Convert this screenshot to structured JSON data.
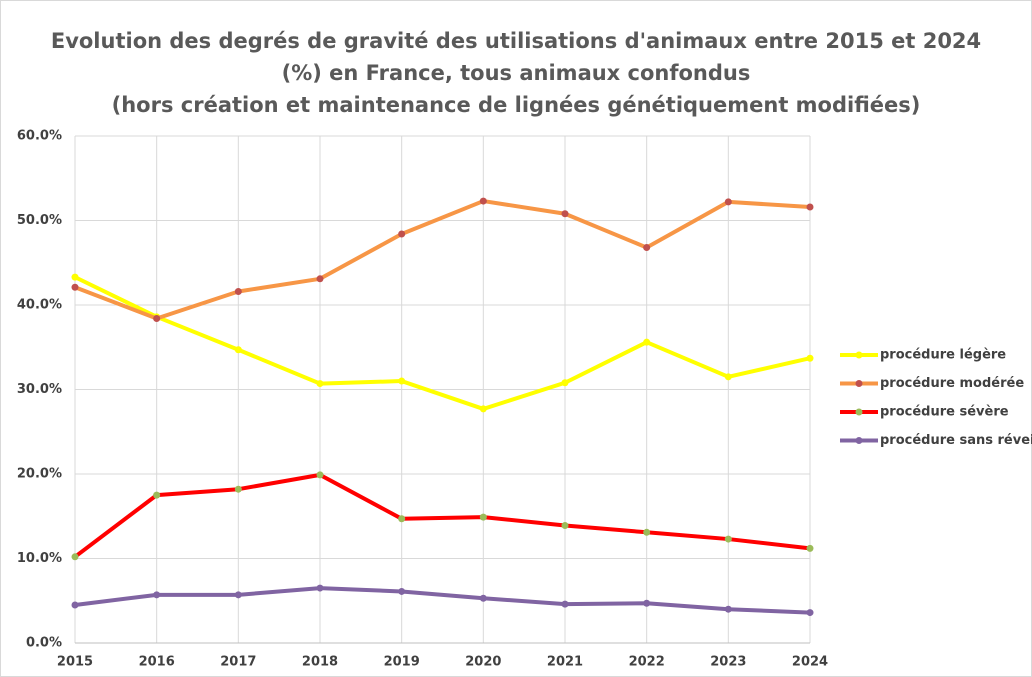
{
  "chart_data": {
    "type": "line",
    "title": [
      "Evolution des degrés de gravité des utilisations d'animaux entre 2015 et 2024",
      "(%) en France, tous animaux confondus",
      "(hors création et maintenance de lignées génétiquement modifiées)"
    ],
    "categories": [
      "2015",
      "2016",
      "2017",
      "2018",
      "2019",
      "2020",
      "2021",
      "2022",
      "2023",
      "2024"
    ],
    "series": [
      {
        "name": "procédure légère",
        "color": "#ffff00",
        "marker_color": "#ffff00",
        "values": [
          43.3,
          38.6,
          34.7,
          30.7,
          31.0,
          27.7,
          30.8,
          35.6,
          31.5,
          33.7
        ]
      },
      {
        "name": "procédure modérée",
        "color": "#f79646",
        "marker_color": "#c0504d",
        "values": [
          42.1,
          38.4,
          41.6,
          43.1,
          48.4,
          52.3,
          50.8,
          46.8,
          52.2,
          51.6
        ]
      },
      {
        "name": "procédure sévère",
        "color": "#ff0000",
        "marker_color": "#9bbb59",
        "values": [
          10.2,
          17.5,
          18.2,
          19.9,
          14.7,
          14.9,
          13.9,
          13.1,
          12.3,
          11.2
        ]
      },
      {
        "name": "procédure sans réveil",
        "color": "#8064a2",
        "marker_color": "#8064a2",
        "values": [
          4.5,
          5.7,
          5.7,
          6.5,
          6.1,
          5.3,
          4.6,
          4.7,
          4.0,
          3.6
        ]
      }
    ],
    "ylim": [
      0,
      60
    ],
    "yticks": [
      {
        "value": 0,
        "label": "0.0%"
      },
      {
        "value": 10,
        "label": "10.0%"
      },
      {
        "value": 20,
        "label": "20.0%"
      },
      {
        "value": 30,
        "label": "30.0%"
      },
      {
        "value": 40,
        "label": "40.0%"
      },
      {
        "value": 50,
        "label": "50.0%"
      },
      {
        "value": 60,
        "label": "60.0%"
      }
    ],
    "grid": true,
    "legend": "right"
  }
}
